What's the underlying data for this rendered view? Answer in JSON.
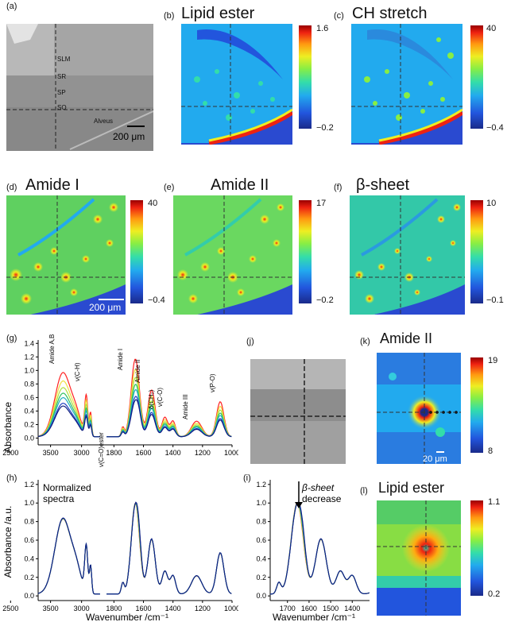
{
  "panels": {
    "a": {
      "label": "(a)",
      "layers": [
        "SLM",
        "SR",
        "SP",
        "SO"
      ],
      "alveus": "Alveus",
      "scale": "200 μm"
    },
    "b": {
      "label": "(b)",
      "title": "Lipid ester",
      "max": "1.6",
      "min": "−0.2"
    },
    "c": {
      "label": "(c)",
      "title": "CH stretch",
      "max": "40",
      "min": "−0.4"
    },
    "d": {
      "label": "(d)",
      "title": "Amide I",
      "max": "40",
      "min": "−0.4",
      "scale": "200 μm"
    },
    "e": {
      "label": "(e)",
      "title": "Amide II",
      "max": "17",
      "min": "−0.2"
    },
    "f": {
      "label": "(f)",
      "title": "β-sheet",
      "max": "10",
      "min": "−0.1"
    },
    "g": {
      "label": "(g)",
      "ylabel": "Absorbance"
    },
    "h": {
      "label": "(h)",
      "ylabel": "Absorbance /a.u.",
      "xlabel": "Wavenumber /cm⁻¹",
      "note1": "Normalized",
      "note2": "spectra"
    },
    "i": {
      "label": "(i)",
      "xlabel": "Wavenumber /cm⁻¹",
      "note1": "β-sheet",
      "note2": "decrease"
    },
    "j": {
      "label": "(j)"
    },
    "k": {
      "label": "(k)",
      "title": "Amide II",
      "max": "19",
      "min": "8",
      "scale": "20 μm"
    },
    "l": {
      "label": "(l)",
      "title": "Lipid ester",
      "max": "1.1",
      "min": "0.2"
    }
  },
  "colors": {
    "jet": [
      "#1a2a8a",
      "#2255dd",
      "#22aaee",
      "#33ddaa",
      "#88ee44",
      "#eeee22",
      "#ff9911",
      "#ee2211",
      "#990000"
    ]
  },
  "chart_data": [
    {
      "type": "line",
      "id": "g",
      "xlabel": "",
      "ylabel": "Absorbance",
      "xlim": [
        3700,
        1000
      ],
      "xbreak": [
        2700,
        1850
      ],
      "ylim": [
        -0.1,
        1.45
      ],
      "xticks": [
        "3500",
        "3000",
        "2500",
        "1800",
        "1600",
        "1400",
        "1200",
        "1000"
      ],
      "yticks": [
        "0.0",
        "0.2",
        "0.4",
        "0.6",
        "0.8",
        "1.0",
        "1.2",
        "1.4"
      ],
      "annotations": [
        "Amide A,B",
        "ν(C-H)",
        "ν(C=O)ester",
        "Amide I",
        "Amide II",
        "δ(CH₂)",
        "ν(C-O)",
        "Amide III",
        "ν(P-O)"
      ],
      "series_colors": [
        "#ff2222",
        "#f0e040",
        "#b0e040",
        "#30c060",
        "#20b0c0",
        "#2040c0",
        "#102080"
      ],
      "series_scale": [
        1.15,
        1.0,
        0.88,
        0.78,
        0.7,
        0.6,
        0.55
      ]
    },
    {
      "type": "line",
      "id": "h",
      "xlabel": "Wavenumber /cm⁻¹",
      "ylabel": "Absorbance /a.u.",
      "xlim": [
        3700,
        1000
      ],
      "ylim": [
        -0.05,
        1.25
      ],
      "xticks": [
        "3500",
        "3000",
        "2500",
        "1800",
        "1600",
        "1400",
        "1200",
        "1000"
      ],
      "yticks": [
        "0.0",
        "0.2",
        "0.4",
        "0.6",
        "0.8",
        "1.0",
        "1.2"
      ]
    },
    {
      "type": "line",
      "id": "i",
      "xlabel": "Wavenumber /cm⁻¹",
      "xlim": [
        1780,
        1320
      ],
      "ylim": [
        -0.05,
        1.25
      ],
      "xticks": [
        "1700",
        "1600",
        "1500",
        "1400"
      ],
      "yticks": [
        "0.0",
        "0.2",
        "0.4",
        "0.6",
        "0.8",
        "1.0",
        "1.2"
      ]
    }
  ]
}
